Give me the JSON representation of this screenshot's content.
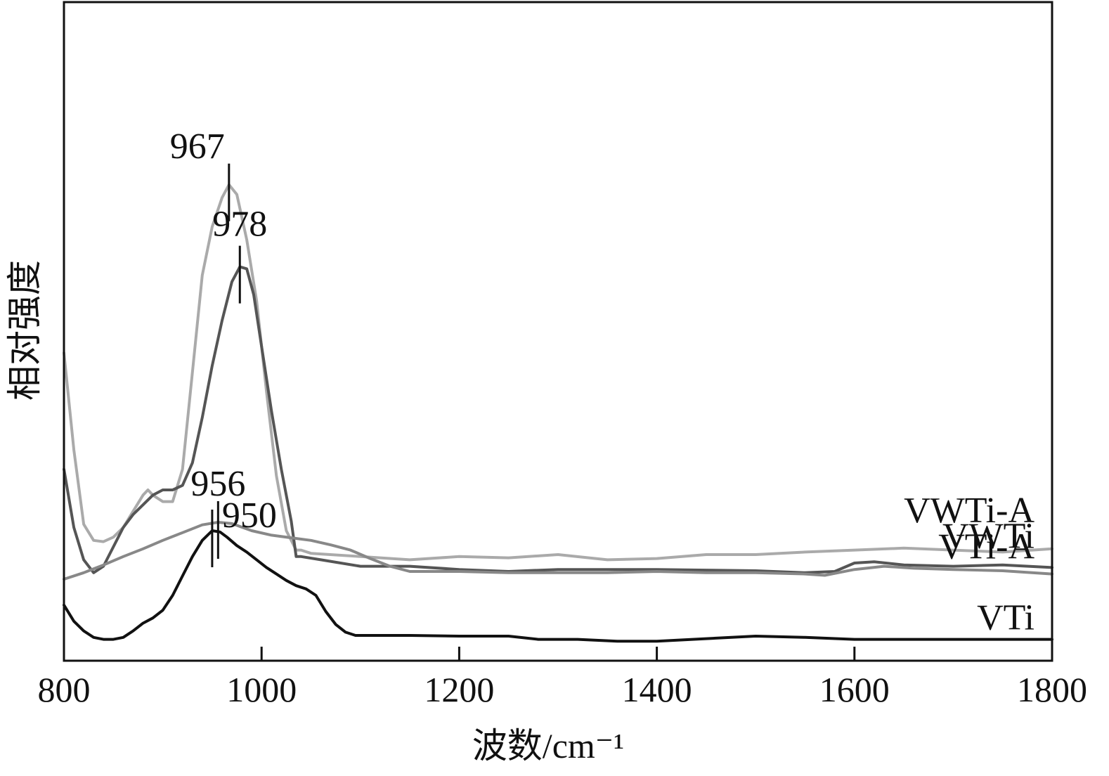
{
  "chart_data": {
    "type": "line",
    "title": "",
    "xlabel": "波数/cm⁻¹",
    "ylabel": "相对强度",
    "xlim": [
      800,
      1800
    ],
    "x_ticks": [
      800,
      1000,
      1200,
      1400,
      1600,
      1800
    ],
    "y_ticks": [],
    "grid": false,
    "legend": "none",
    "series": [
      {
        "name": "VWTi-A",
        "color": "#aaaaaa",
        "peak": {
          "x": 967,
          "label": "967"
        },
        "points": [
          [
            800,
            6.5
          ],
          [
            810,
            5.0
          ],
          [
            820,
            3.85
          ],
          [
            830,
            3.6
          ],
          [
            840,
            3.58
          ],
          [
            850,
            3.65
          ],
          [
            860,
            3.8
          ],
          [
            870,
            4.05
          ],
          [
            880,
            4.3
          ],
          [
            885,
            4.38
          ],
          [
            890,
            4.3
          ],
          [
            900,
            4.2
          ],
          [
            910,
            4.2
          ],
          [
            920,
            4.7
          ],
          [
            930,
            6.2
          ],
          [
            940,
            7.7
          ],
          [
            950,
            8.45
          ],
          [
            960,
            8.9
          ],
          [
            967,
            9.1
          ],
          [
            975,
            8.95
          ],
          [
            985,
            8.25
          ],
          [
            995,
            7.3
          ],
          [
            1005,
            5.9
          ],
          [
            1015,
            4.6
          ],
          [
            1025,
            3.75
          ],
          [
            1035,
            3.45
          ],
          [
            1040,
            3.45
          ],
          [
            1050,
            3.4
          ],
          [
            1100,
            3.35
          ],
          [
            1150,
            3.3
          ],
          [
            1200,
            3.35
          ],
          [
            1250,
            3.33
          ],
          [
            1300,
            3.38
          ],
          [
            1350,
            3.3
          ],
          [
            1400,
            3.32
          ],
          [
            1450,
            3.38
          ],
          [
            1500,
            3.38
          ],
          [
            1550,
            3.42
          ],
          [
            1600,
            3.45
          ],
          [
            1650,
            3.48
          ],
          [
            1700,
            3.45
          ],
          [
            1750,
            3.42
          ],
          [
            1800,
            3.47
          ]
        ]
      },
      {
        "name": "VWTi",
        "color": "#555555",
        "peak": {
          "x": 978,
          "label": "978"
        },
        "points": [
          [
            800,
            4.7
          ],
          [
            810,
            3.8
          ],
          [
            820,
            3.3
          ],
          [
            830,
            3.1
          ],
          [
            840,
            3.2
          ],
          [
            850,
            3.5
          ],
          [
            860,
            3.8
          ],
          [
            870,
            4.0
          ],
          [
            880,
            4.15
          ],
          [
            890,
            4.3
          ],
          [
            900,
            4.38
          ],
          [
            910,
            4.38
          ],
          [
            920,
            4.45
          ],
          [
            930,
            4.8
          ],
          [
            940,
            5.5
          ],
          [
            950,
            6.3
          ],
          [
            960,
            7.0
          ],
          [
            970,
            7.6
          ],
          [
            978,
            7.83
          ],
          [
            985,
            7.8
          ],
          [
            992,
            7.4
          ],
          [
            1000,
            6.6
          ],
          [
            1010,
            5.6
          ],
          [
            1020,
            4.7
          ],
          [
            1030,
            3.9
          ],
          [
            1035,
            3.35
          ],
          [
            1040,
            3.35
          ],
          [
            1060,
            3.3
          ],
          [
            1100,
            3.2
          ],
          [
            1150,
            3.2
          ],
          [
            1200,
            3.15
          ],
          [
            1250,
            3.12
          ],
          [
            1300,
            3.15
          ],
          [
            1350,
            3.15
          ],
          [
            1400,
            3.15
          ],
          [
            1450,
            3.14
          ],
          [
            1500,
            3.13
          ],
          [
            1550,
            3.1
          ],
          [
            1580,
            3.12
          ],
          [
            1600,
            3.25
          ],
          [
            1620,
            3.27
          ],
          [
            1650,
            3.22
          ],
          [
            1700,
            3.2
          ],
          [
            1750,
            3.22
          ],
          [
            1800,
            3.18
          ]
        ]
      },
      {
        "name": "VTi-A",
        "color": "#888888",
        "peak": {
          "x": 956,
          "label": "956"
        },
        "points": [
          [
            800,
            3.0
          ],
          [
            820,
            3.1
          ],
          [
            840,
            3.22
          ],
          [
            860,
            3.35
          ],
          [
            880,
            3.47
          ],
          [
            900,
            3.6
          ],
          [
            920,
            3.72
          ],
          [
            940,
            3.84
          ],
          [
            956,
            3.88
          ],
          [
            970,
            3.86
          ],
          [
            990,
            3.75
          ],
          [
            1010,
            3.68
          ],
          [
            1030,
            3.64
          ],
          [
            1050,
            3.6
          ],
          [
            1070,
            3.53
          ],
          [
            1090,
            3.45
          ],
          [
            1110,
            3.32
          ],
          [
            1130,
            3.2
          ],
          [
            1150,
            3.12
          ],
          [
            1200,
            3.12
          ],
          [
            1250,
            3.1
          ],
          [
            1300,
            3.1
          ],
          [
            1350,
            3.1
          ],
          [
            1400,
            3.12
          ],
          [
            1450,
            3.1
          ],
          [
            1500,
            3.1
          ],
          [
            1550,
            3.08
          ],
          [
            1570,
            3.06
          ],
          [
            1600,
            3.15
          ],
          [
            1630,
            3.2
          ],
          [
            1660,
            3.17
          ],
          [
            1700,
            3.15
          ],
          [
            1750,
            3.13
          ],
          [
            1800,
            3.08
          ]
        ]
      },
      {
        "name": "VTi",
        "color": "#111111",
        "peak": {
          "x": 950,
          "label": "950"
        },
        "points": [
          [
            800,
            2.6
          ],
          [
            810,
            2.35
          ],
          [
            820,
            2.2
          ],
          [
            830,
            2.1
          ],
          [
            840,
            2.07
          ],
          [
            850,
            2.07
          ],
          [
            860,
            2.1
          ],
          [
            870,
            2.2
          ],
          [
            880,
            2.32
          ],
          [
            890,
            2.4
          ],
          [
            900,
            2.52
          ],
          [
            910,
            2.75
          ],
          [
            920,
            3.05
          ],
          [
            930,
            3.35
          ],
          [
            940,
            3.6
          ],
          [
            950,
            3.75
          ],
          [
            958,
            3.73
          ],
          [
            965,
            3.65
          ],
          [
            975,
            3.52
          ],
          [
            985,
            3.42
          ],
          [
            995,
            3.3
          ],
          [
            1005,
            3.18
          ],
          [
            1015,
            3.08
          ],
          [
            1025,
            2.98
          ],
          [
            1035,
            2.9
          ],
          [
            1045,
            2.85
          ],
          [
            1055,
            2.75
          ],
          [
            1065,
            2.5
          ],
          [
            1075,
            2.3
          ],
          [
            1085,
            2.18
          ],
          [
            1095,
            2.13
          ],
          [
            1150,
            2.13
          ],
          [
            1200,
            2.12
          ],
          [
            1250,
            2.12
          ],
          [
            1280,
            2.07
          ],
          [
            1320,
            2.07
          ],
          [
            1360,
            2.04
          ],
          [
            1400,
            2.04
          ],
          [
            1450,
            2.08
          ],
          [
            1500,
            2.12
          ],
          [
            1550,
            2.1
          ],
          [
            1600,
            2.07
          ],
          [
            1650,
            2.07
          ],
          [
            1700,
            2.07
          ],
          [
            1750,
            2.07
          ],
          [
            1800,
            2.07
          ]
        ]
      }
    ]
  }
}
